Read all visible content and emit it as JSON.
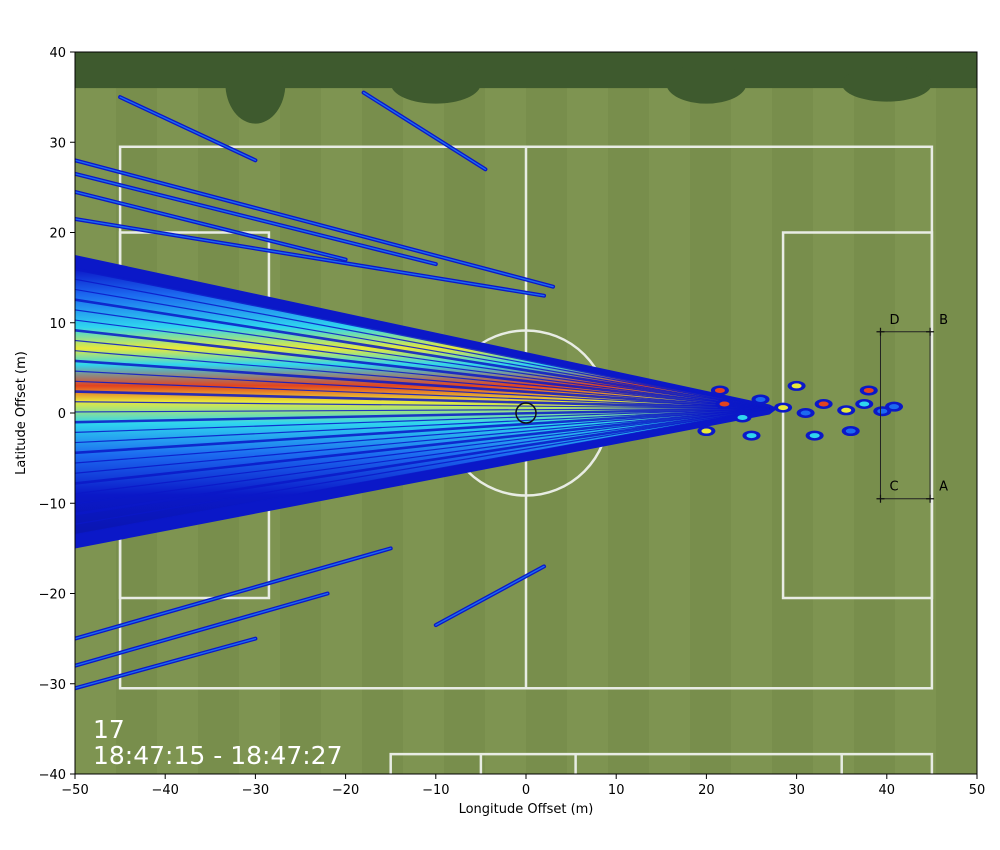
{
  "chart_data": {
    "type": "heatmap",
    "title": "",
    "xlabel": "Longitude Offset (m)",
    "ylabel": "Latitude Offset (m)",
    "xlim": [
      -50,
      50
    ],
    "ylim": [
      -40,
      40
    ],
    "x_ticks": [
      -50,
      -40,
      -30,
      -20,
      -10,
      0,
      10,
      20,
      30,
      40,
      50
    ],
    "y_ticks": [
      -40,
      -30,
      -20,
      -10,
      0,
      10,
      20,
      30,
      40
    ],
    "colormap": "jet",
    "background": "aerial photo of a grass football pitch",
    "source_marker": {
      "x": 0,
      "y": 0,
      "label": ""
    },
    "corner_points": [
      {
        "label": "A",
        "x": 44.8,
        "y": -9.5
      },
      {
        "label": "B",
        "x": 44.8,
        "y": 9.0
      },
      {
        "label": "C",
        "x": 39.3,
        "y": -9.5
      },
      {
        "label": "D",
        "x": 39.3,
        "y": 9.0
      }
    ],
    "frame_number": "17",
    "time_range": "18:47:15 - 18:47:27",
    "field_lines": {
      "outer": {
        "x0": -45,
        "x1": 45,
        "y0": -30.5,
        "y1": 29.5
      },
      "halfway_x": 0,
      "right_box": {
        "x0": 28.5,
        "x1": 45,
        "y0": -20.5,
        "y1": 20
      },
      "left_box": {
        "x0": -45,
        "x1": -28.5,
        "y0": -20.5,
        "y1": 20
      }
    },
    "beam": {
      "apex_x": 27,
      "apex_y": 0.5,
      "left_edge_x": -50,
      "upper_y_at_left": 16,
      "lower_y_at_left": -13.5
    },
    "side_lobes": [
      {
        "x0": -50,
        "y0": 28,
        "x1": 3,
        "y1": 14
      },
      {
        "x0": -50,
        "y0": 26.5,
        "x1": -10,
        "y1": 16.5
      },
      {
        "x0": -50,
        "y0": 24.5,
        "x1": -20,
        "y1": 17
      },
      {
        "x0": -50,
        "y0": 21.5,
        "x1": 2,
        "y1": 13
      },
      {
        "x0": -45,
        "y0": 35,
        "x1": -30,
        "y1": 28
      },
      {
        "x0": -18,
        "y0": 35.5,
        "x1": -4.5,
        "y1": 27
      },
      {
        "x0": -50,
        "y0": -25,
        "x1": -15,
        "y1": -15
      },
      {
        "x0": -50,
        "y0": -28,
        "x1": -22,
        "y1": -20
      },
      {
        "x0": -50,
        "y0": -30.5,
        "x1": -30,
        "y1": -25
      },
      {
        "x0": -10,
        "y0": -23.5,
        "x1": 2,
        "y1": -17
      }
    ],
    "colors": {
      "grass_light": "#7e9451",
      "grass_dark": "#6e8446",
      "trees": "#3e5a2e",
      "line_white": "#e8ece4",
      "beam_outer": "#0b18c8",
      "beam_mid": "#1c6af0",
      "beam_cyan": "#2fd6ef",
      "beam_yellow": "#e9e93a",
      "beam_red": "#e4431e"
    }
  }
}
